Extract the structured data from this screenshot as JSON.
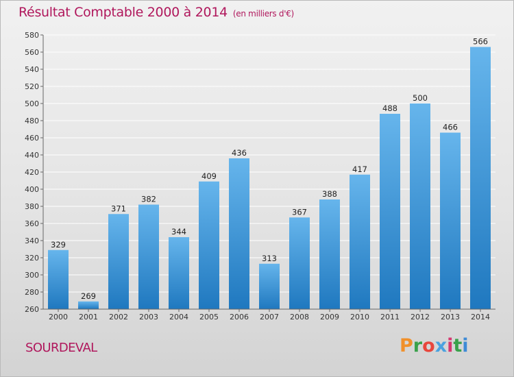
{
  "header": {
    "title": "Résultat Comptable 2000 à 2014",
    "subtitle": "(en milliers d'€)"
  },
  "footer": {
    "commune": "SOURDEVAL",
    "logo_letters": [
      "P",
      "r",
      "o",
      "x",
      "i",
      "t",
      "i"
    ],
    "logo_colors": [
      "#f0902a",
      "#3aa14b",
      "#e8463c",
      "#4aa2e0",
      "#d6386f",
      "#3aa14b",
      "#3e8ad6"
    ]
  },
  "colors": {
    "title": "#b0175c",
    "bar_light": "#66b5ec",
    "bar_dark": "#1f78bf",
    "grid": "#ffffff",
    "axis": "#666666"
  },
  "chart_data": {
    "type": "bar",
    "title": "Résultat Comptable 2000 à 2014",
    "subtitle": "(en milliers d'€)",
    "xlabel": "",
    "ylabel": "",
    "categories": [
      "2000",
      "2001",
      "2002",
      "2003",
      "2004",
      "2005",
      "2006",
      "2007",
      "2008",
      "2009",
      "2010",
      "2011",
      "2012",
      "2013",
      "2014"
    ],
    "values": [
      329,
      269,
      371,
      382,
      344,
      409,
      436,
      313,
      367,
      388,
      417,
      488,
      500,
      466,
      566
    ],
    "ylim": [
      260,
      580
    ],
    "yticks": [
      260,
      280,
      300,
      320,
      340,
      360,
      380,
      400,
      420,
      440,
      460,
      480,
      500,
      520,
      540,
      560,
      580
    ],
    "grid": true
  }
}
